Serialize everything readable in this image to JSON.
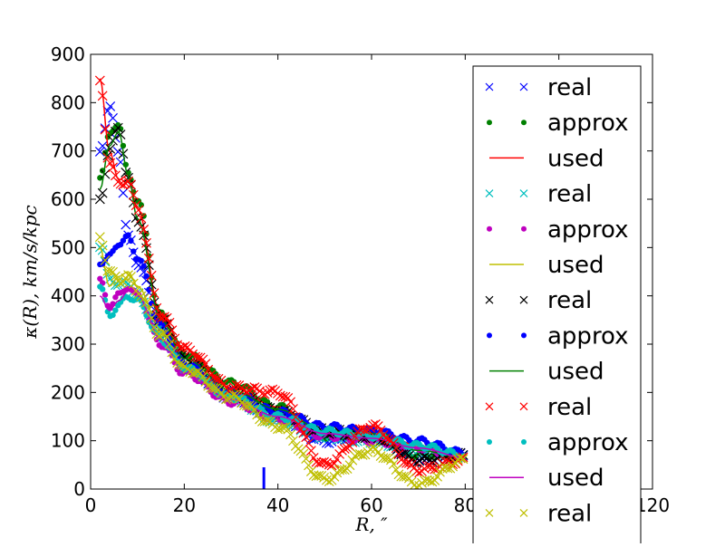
{
  "chart_data": {
    "type": "scatter",
    "xlabel": "R, ″",
    "ylabel": "κ(R), km/s/kpc",
    "xlim": [
      0,
      120
    ],
    "ylim": [
      0,
      900
    ],
    "xticks": [
      0,
      20,
      40,
      60,
      80,
      100,
      120
    ],
    "xtick_labels": [
      "0",
      "20",
      "40",
      "60",
      "80",
      "",
      "120"
    ],
    "yticks": [
      0,
      100,
      200,
      300,
      400,
      500,
      600,
      700,
      800,
      900
    ],
    "ytick_labels": [
      "0",
      "100",
      "200",
      "300",
      "400",
      "500",
      "600",
      "700",
      "800",
      "900"
    ],
    "grid": false,
    "legend_position": "upper-right (overflows bottom of plot)",
    "marker_line": {
      "x": 37,
      "y0": 0,
      "y1": 45,
      "color": "#0000ff"
    },
    "series": [
      {
        "name": "real",
        "style": "x",
        "color": "#0000ff",
        "x": [
          2,
          4,
          6,
          8,
          10,
          15,
          20,
          30,
          40,
          50,
          60,
          70,
          80
        ],
        "y": [
          700,
          790,
          700,
          520,
          470,
          330,
          260,
          190,
          150,
          100,
          115,
          60,
          70
        ]
      },
      {
        "name": "approx",
        "style": "dot",
        "color": "#008000",
        "x": [
          2,
          4,
          6,
          8,
          10,
          15,
          20,
          30,
          40,
          50,
          60,
          70,
          80
        ],
        "y": [
          650,
          730,
          760,
          650,
          600,
          360,
          280,
          220,
          170,
          110,
          120,
          70,
          75
        ]
      },
      {
        "name": "used",
        "style": "line",
        "color": "#ff0000",
        "x": [
          2,
          4,
          6,
          8,
          10,
          15,
          20,
          30,
          40,
          50,
          60,
          70,
          80
        ],
        "y": [
          850,
          700,
          640,
          650,
          580,
          360,
          290,
          210,
          170,
          120,
          130,
          90,
          60
        ]
      },
      {
        "name": "real",
        "style": "x",
        "color": "#00bfbf",
        "x": [
          2,
          4,
          6,
          8,
          10,
          15,
          20,
          30,
          40,
          50,
          60,
          70,
          80
        ],
        "y": [
          500,
          440,
          420,
          430,
          400,
          330,
          250,
          190,
          140,
          110,
          100,
          80,
          70
        ]
      },
      {
        "name": "approx",
        "style": "dot",
        "color": "#bf00bf",
        "x": [
          2,
          4,
          6,
          8,
          10,
          15,
          20,
          30,
          40,
          50,
          60,
          70,
          80
        ],
        "y": [
          430,
          380,
          400,
          420,
          400,
          300,
          240,
          180,
          145,
          110,
          100,
          85,
          65
        ]
      },
      {
        "name": "used",
        "style": "line",
        "color": "#bfbf00",
        "x": [
          2,
          4,
          6,
          8,
          10,
          15,
          20,
          30,
          40,
          50,
          60,
          70,
          80
        ],
        "y": [
          500,
          420,
          440,
          450,
          420,
          330,
          260,
          200,
          160,
          120,
          110,
          90,
          70
        ]
      },
      {
        "name": "real",
        "style": "x",
        "color": "#000000",
        "x": [
          2,
          4,
          6,
          8,
          10,
          15,
          20,
          30,
          40,
          50,
          60,
          70,
          80
        ],
        "y": [
          600,
          700,
          750,
          640,
          560,
          350,
          270,
          200,
          160,
          120,
          110,
          60,
          70
        ]
      },
      {
        "name": "approx",
        "style": "dot",
        "color": "#0000ff",
        "x": [
          2,
          4,
          6,
          8,
          10,
          15,
          20,
          30,
          40,
          50,
          60,
          70,
          80
        ],
        "y": [
          470,
          480,
          510,
          520,
          480,
          340,
          260,
          200,
          160,
          130,
          120,
          100,
          75
        ]
      },
      {
        "name": "used",
        "style": "line",
        "color": "#008000",
        "x": [
          2,
          4,
          6,
          8,
          10,
          15,
          20,
          30,
          40,
          50,
          60,
          70,
          80
        ],
        "y": [
          620,
          710,
          740,
          650,
          560,
          350,
          270,
          205,
          165,
          120,
          115,
          80,
          65
        ]
      },
      {
        "name": "approx",
        "style": "dot",
        "color": "#00bfbf",
        "x": [
          2,
          4,
          6,
          8,
          10,
          15,
          20,
          30,
          40,
          50,
          60,
          70,
          80
        ],
        "y": [
          420,
          360,
          380,
          400,
          390,
          310,
          250,
          190,
          150,
          120,
          110,
          90,
          70
        ]
      },
      {
        "name": "used",
        "style": "line",
        "color": "#bf00bf",
        "x": [
          2,
          4,
          6,
          8,
          10,
          15,
          20,
          30,
          40,
          50,
          60,
          70,
          80
        ],
        "y": [
          400,
          370,
          390,
          410,
          400,
          310,
          240,
          185,
          150,
          115,
          105,
          85,
          65
        ]
      },
      {
        "name": "real",
        "style": "x",
        "color": "#ff0000",
        "x": [
          2,
          4,
          6,
          8,
          10,
          15,
          20,
          30,
          40,
          50,
          60,
          70,
          80
        ],
        "y": [
          840,
          680,
          630,
          640,
          580,
          360,
          290,
          210,
          200,
          50,
          130,
          40,
          60
        ]
      },
      {
        "name": "real",
        "style": "x",
        "color": "#bfbf00",
        "x": [
          2,
          4,
          6,
          8,
          10,
          15,
          20,
          30,
          40,
          50,
          60,
          70,
          80
        ],
        "y": [
          520,
          450,
          430,
          440,
          410,
          320,
          250,
          190,
          130,
          20,
          80,
          10,
          60
        ]
      }
    ]
  },
  "legend": {
    "items": [
      {
        "label": "real",
        "style": "x",
        "color": "#0000ff"
      },
      {
        "label": "approx",
        "style": "dot",
        "color": "#008000"
      },
      {
        "label": "used",
        "style": "line",
        "color": "#ff0000"
      },
      {
        "label": "real",
        "style": "x",
        "color": "#00bfbf"
      },
      {
        "label": "approx",
        "style": "dot",
        "color": "#bf00bf"
      },
      {
        "label": "used",
        "style": "line",
        "color": "#bfbf00"
      },
      {
        "label": "real",
        "style": "x",
        "color": "#000000"
      },
      {
        "label": "approx",
        "style": "dot",
        "color": "#0000ff"
      },
      {
        "label": "used",
        "style": "line",
        "color": "#008000"
      },
      {
        "label": "real",
        "style": "x",
        "color": "#ff0000"
      },
      {
        "label": "approx",
        "style": "dot",
        "color": "#00bfbf"
      },
      {
        "label": "used",
        "style": "line",
        "color": "#bf00bf"
      },
      {
        "label": "real",
        "style": "x",
        "color": "#bfbf00"
      }
    ]
  }
}
